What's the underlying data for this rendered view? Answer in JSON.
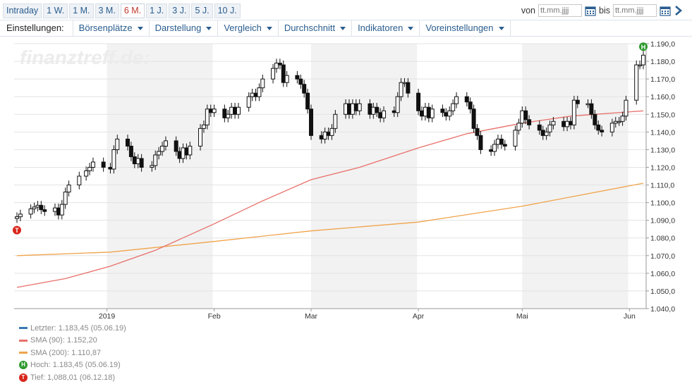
{
  "toolbar": {
    "ranges": [
      "Intraday",
      "1 W.",
      "1 M.",
      "3 M.",
      "6 M.",
      "1 J.",
      "3 J.",
      "5 J.",
      "10 J."
    ],
    "active_range": "6 M.",
    "von_label": "von",
    "bis_label": "bis",
    "von_placeholder": "tt.mm.jjjj",
    "bis_placeholder": "tt.mm.jjjj"
  },
  "settings": {
    "label": "Einstellungen:",
    "menus": [
      "Börsenplätze",
      "Darstellung",
      "Vergleich",
      "Durchschnitt",
      "Indikatoren",
      "Voreinstellungen"
    ]
  },
  "watermark": "finanztreff.de:",
  "colors": {
    "sma90": "#e8706a",
    "sma200": "#f0a34a",
    "last": "#3a78b5",
    "high_badge": "#2e9a2e",
    "low_badge": "#d9261c",
    "shade": "#f2f2f2",
    "link": "#2a5d8f"
  },
  "legend": {
    "last": "Letzter: 1.183,45 (05.06.19)",
    "sma90": "SMA (90): 1.152,20",
    "sma200": "SMA (200): 1.110,87",
    "high": "Hoch: 1.183,45 (05.06.19)",
    "low": "Tief: 1,088,01 (06.12.18)",
    "high_badge": "H",
    "low_badge": "T"
  },
  "chart_data": {
    "type": "candlestick",
    "x_start": "2018-12-06",
    "x_end": "2019-06-05",
    "ylim": [
      1.04,
      1.19
    ],
    "y_ticks": [
      "1.040,0",
      "1.050,0",
      "1.060,0",
      "1.070,0",
      "1.080,0",
      "1.090,0",
      "1.100,0",
      "1.110,0",
      "1.120,0",
      "1.130,0",
      "1.140,0",
      "1.150,0",
      "1.160,0",
      "1.170,0",
      "1.180,0",
      "1.190,0"
    ],
    "x_labels": [
      {
        "date": "2019-01-01",
        "label": "2019"
      },
      {
        "date": "2019-02-01",
        "label": "Feb"
      },
      {
        "date": "2019-03-01",
        "label": "Mar"
      },
      {
        "date": "2019-04-01",
        "label": "Apr"
      },
      {
        "date": "2019-05-01",
        "label": "Mai"
      },
      {
        "date": "2019-06-01",
        "label": "Jun"
      }
    ],
    "shaded_months": [
      [
        "2019-01-01",
        "2019-01-31"
      ],
      [
        "2019-03-01",
        "2019-03-31"
      ],
      [
        "2019-05-01",
        "2019-05-31"
      ]
    ],
    "grid": true,
    "close": [
      [
        "2018-12-06",
        1.092
      ],
      [
        "2018-12-07",
        1.0935
      ],
      [
        "2018-12-10",
        1.0965
      ],
      [
        "2018-12-11",
        1.0975
      ],
      [
        "2018-12-12",
        1.0985
      ],
      [
        "2018-12-13",
        1.096
      ],
      [
        "2018-12-14",
        1.095
      ],
      [
        "2018-12-17",
        1.097
      ],
      [
        "2018-12-18",
        1.093
      ],
      [
        "2018-12-19",
        1.099
      ],
      [
        "2018-12-20",
        1.106
      ],
      [
        "2018-12-21",
        1.11
      ],
      [
        "2018-12-24",
        1.115
      ],
      [
        "2018-12-26",
        1.118
      ],
      [
        "2018-12-27",
        1.12
      ],
      [
        "2018-12-28",
        1.123
      ],
      [
        "2018-12-31",
        1.12
      ],
      [
        "2019-01-02",
        1.119
      ],
      [
        "2019-01-03",
        1.13
      ],
      [
        "2019-01-04",
        1.136
      ],
      [
        "2019-01-07",
        1.132
      ],
      [
        "2019-01-08",
        1.126
      ],
      [
        "2019-01-09",
        1.122
      ],
      [
        "2019-01-10",
        1.125
      ],
      [
        "2019-01-11",
        1.12
      ],
      [
        "2019-01-14",
        1.121
      ],
      [
        "2019-01-15",
        1.127
      ],
      [
        "2019-01-16",
        1.129
      ],
      [
        "2019-01-17",
        1.132
      ],
      [
        "2019-01-18",
        1.135
      ],
      [
        "2019-01-21",
        1.129
      ],
      [
        "2019-01-22",
        1.125
      ],
      [
        "2019-01-23",
        1.131
      ],
      [
        "2019-01-24",
        1.127
      ],
      [
        "2019-01-25",
        1.132
      ],
      [
        "2019-01-28",
        1.142
      ],
      [
        "2019-01-29",
        1.144
      ],
      [
        "2019-01-30",
        1.153
      ],
      [
        "2019-01-31",
        1.151
      ],
      [
        "2019-02-01",
        1.153
      ],
      [
        "2019-02-04",
        1.148
      ],
      [
        "2019-02-05",
        1.15
      ],
      [
        "2019-02-06",
        1.154
      ],
      [
        "2019-02-07",
        1.15
      ],
      [
        "2019-02-08",
        1.154
      ],
      [
        "2019-02-11",
        1.16
      ],
      [
        "2019-02-12",
        1.162
      ],
      [
        "2019-02-13",
        1.16
      ],
      [
        "2019-02-14",
        1.165
      ],
      [
        "2019-02-15",
        1.17
      ],
      [
        "2019-02-18",
        1.176
      ],
      [
        "2019-02-19",
        1.179
      ],
      [
        "2019-02-20",
        1.178
      ],
      [
        "2019-02-21",
        1.168
      ],
      [
        "2019-02-22",
        1.172
      ],
      [
        "2019-02-25",
        1.17
      ],
      [
        "2019-02-26",
        1.167
      ],
      [
        "2019-02-27",
        1.162
      ],
      [
        "2019-02-28",
        1.153
      ],
      [
        "2019-03-01",
        1.138
      ],
      [
        "2019-03-04",
        1.136
      ],
      [
        "2019-03-05",
        1.14
      ],
      [
        "2019-03-06",
        1.138
      ],
      [
        "2019-03-07",
        1.142
      ],
      [
        "2019-03-08",
        1.15
      ],
      [
        "2019-03-11",
        1.156
      ],
      [
        "2019-03-12",
        1.15
      ],
      [
        "2019-03-13",
        1.156
      ],
      [
        "2019-03-14",
        1.152
      ],
      [
        "2019-03-15",
        1.156
      ],
      [
        "2019-03-18",
        1.15
      ],
      [
        "2019-03-19",
        1.154
      ],
      [
        "2019-03-20",
        1.151
      ],
      [
        "2019-03-21",
        1.148
      ],
      [
        "2019-03-22",
        1.152
      ],
      [
        "2019-03-25",
        1.151
      ],
      [
        "2019-03-26",
        1.16
      ],
      [
        "2019-03-27",
        1.168
      ],
      [
        "2019-03-28",
        1.168
      ],
      [
        "2019-03-29",
        1.162
      ],
      [
        "2019-04-01",
        1.152
      ],
      [
        "2019-04-02",
        1.149
      ],
      [
        "2019-04-03",
        1.154
      ],
      [
        "2019-04-04",
        1.148
      ],
      [
        "2019-04-05",
        1.153
      ],
      [
        "2019-04-08",
        1.151
      ],
      [
        "2019-04-09",
        1.149
      ],
      [
        "2019-04-10",
        1.152
      ],
      [
        "2019-04-11",
        1.156
      ],
      [
        "2019-04-12",
        1.16
      ],
      [
        "2019-04-15",
        1.157
      ],
      [
        "2019-04-16",
        1.153
      ],
      [
        "2019-04-17",
        1.142
      ],
      [
        "2019-04-18",
        1.138
      ],
      [
        "2019-04-19",
        1.13
      ],
      [
        "2019-04-22",
        1.129
      ],
      [
        "2019-04-23",
        1.133
      ],
      [
        "2019-04-24",
        1.136
      ],
      [
        "2019-04-25",
        1.133
      ],
      [
        "2019-04-26",
        1.132
      ],
      [
        "2019-04-29",
        1.141
      ],
      [
        "2019-04-30",
        1.145
      ],
      [
        "2019-05-01",
        1.152
      ],
      [
        "2019-05-02",
        1.147
      ],
      [
        "2019-05-03",
        1.144
      ],
      [
        "2019-05-06",
        1.141
      ],
      [
        "2019-05-07",
        1.138
      ],
      [
        "2019-05-08",
        1.14
      ],
      [
        "2019-05-09",
        1.144
      ],
      [
        "2019-05-10",
        1.146
      ],
      [
        "2019-05-13",
        1.143
      ],
      [
        "2019-05-14",
        1.146
      ],
      [
        "2019-05-15",
        1.144
      ],
      [
        "2019-05-16",
        1.158
      ],
      [
        "2019-05-17",
        1.156
      ],
      [
        "2019-05-20",
        1.156
      ],
      [
        "2019-05-21",
        1.15
      ],
      [
        "2019-05-22",
        1.144
      ],
      [
        "2019-05-23",
        1.141
      ],
      [
        "2019-05-24",
        1.14
      ],
      [
        "2019-05-27",
        1.145
      ],
      [
        "2019-05-28",
        1.146
      ],
      [
        "2019-05-29",
        1.146
      ],
      [
        "2019-05-30",
        1.149
      ],
      [
        "2019-05-31",
        1.158
      ],
      [
        "2019-06-03",
        1.178
      ],
      [
        "2019-06-04",
        1.178
      ],
      [
        "2019-06-05",
        1.1835
      ]
    ],
    "sma90": [
      [
        "2018-12-06",
        1.052
      ],
      [
        "2018-12-20",
        1.057
      ],
      [
        "2019-01-02",
        1.064
      ],
      [
        "2019-01-15",
        1.073
      ],
      [
        "2019-02-01",
        1.088
      ],
      [
        "2019-02-15",
        1.101
      ],
      [
        "2019-03-01",
        1.113
      ],
      [
        "2019-03-15",
        1.12
      ],
      [
        "2019-04-01",
        1.131
      ],
      [
        "2019-04-15",
        1.139
      ],
      [
        "2019-05-01",
        1.145
      ],
      [
        "2019-05-15",
        1.149
      ],
      [
        "2019-06-05",
        1.152
      ]
    ],
    "sma200": [
      [
        "2018-12-06",
        1.07
      ],
      [
        "2019-01-02",
        1.072
      ],
      [
        "2019-02-01",
        1.078
      ],
      [
        "2019-03-01",
        1.084
      ],
      [
        "2019-04-01",
        1.089
      ],
      [
        "2019-05-01",
        1.098
      ],
      [
        "2019-06-05",
        1.111
      ]
    ],
    "high_marker": {
      "date": "2019-06-05",
      "value": 1.1835
    },
    "low_marker": {
      "date": "2018-12-06",
      "value": 1.088
    }
  }
}
